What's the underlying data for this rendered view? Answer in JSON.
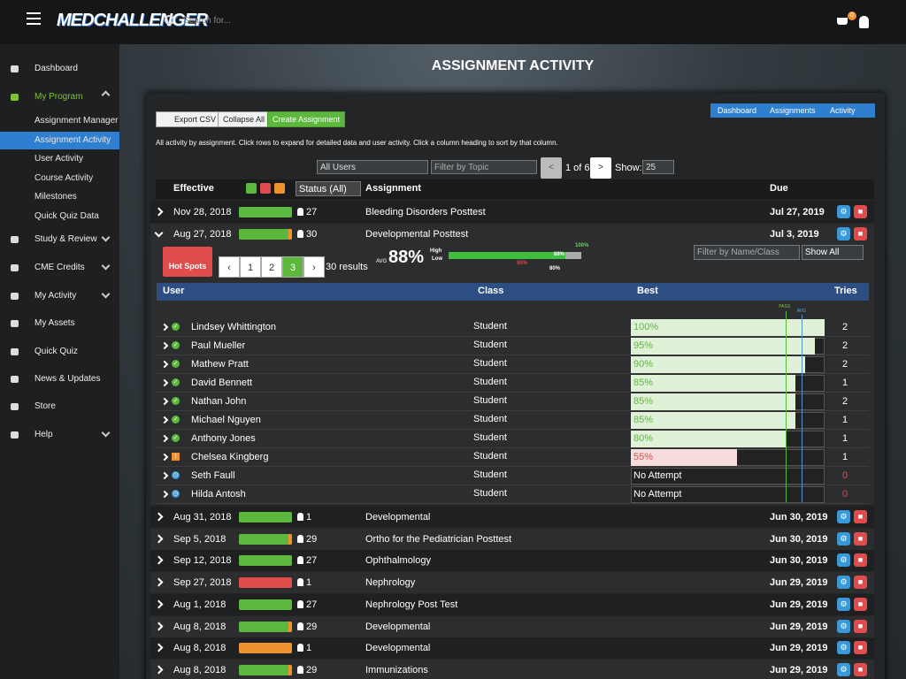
{
  "header": {
    "logo": "MEDCHALLENGER",
    "search_placeholder": "Search for...",
    "cart_count": "0"
  },
  "sidebar": [
    {
      "label": "Dashboard",
      "y": 0
    },
    {
      "label": "My Program",
      "active": true,
      "children": [
        "Assignment Manager",
        "Assignment Activity",
        "User Activity",
        "Course Activity",
        "Milestones",
        "Quick Quiz Data"
      ],
      "selected_child": 1
    },
    {
      "label": "Study & Review",
      "expandable": true
    },
    {
      "label": "CME Credits",
      "expandable": true
    },
    {
      "label": "My Activity",
      "expandable": true
    },
    {
      "label": "My Assets"
    },
    {
      "label": "Quick Quiz"
    },
    {
      "label": "News & Updates"
    },
    {
      "label": "Store"
    },
    {
      "label": "Help",
      "expandable": true
    }
  ],
  "page_title": "ASSIGNMENT ACTIVITY",
  "toolbar": {
    "export": "Export CSV",
    "collapse": "Collapse All",
    "create": "Create Assignment"
  },
  "breadcrumb": [
    "Dashboard",
    "Assignments",
    "Activity"
  ],
  "description": "All activity by assignment. Click rows to expand for detailed data and user activity. Click a column heading to sort by that column.",
  "filters": {
    "users": "All Users",
    "topic_placeholder": "Filter by Topic",
    "prev": "<",
    "page": "1 of 6",
    "next": ">",
    "show_label": "Show:",
    "show_value": "25"
  },
  "columns": {
    "effective": "Effective",
    "status": "Status (All)",
    "assignment": "Assignment",
    "due": "Due"
  },
  "assignments": [
    {
      "effective": "Nov 28, 2018",
      "users": "27",
      "name": "Bleeding Disorders Posttest",
      "due": "Jul 27, 2019",
      "color": "#5cb83c"
    },
    {
      "effective": "Aug 27, 2018",
      "users": "30",
      "name": "Developmental Posttest",
      "due": "Jul 3, 2019",
      "color": "#5cb83c",
      "tip_color": "#f0922e"
    },
    {
      "effective": "Aug 31, 2018",
      "users": "1",
      "name": "Developmental",
      "due": "Jun 30, 2019",
      "color": "#5cb83c"
    },
    {
      "effective": "Sep 5, 2018",
      "users": "29",
      "name": "Ortho for the Pediatrician Posttest",
      "due": "Jun 30, 2019",
      "color": "#5cb83c",
      "tip_color": "#f0922e"
    },
    {
      "effective": "Sep 12, 2018",
      "users": "27",
      "name": "Ophthalmology",
      "due": "Jun 30, 2019",
      "color": "#5cb83c"
    },
    {
      "effective": "Sep 27, 2018",
      "users": "1",
      "name": "Nephrology",
      "due": "Jun 29, 2019",
      "color": "#e04c4c"
    },
    {
      "effective": "Aug 1, 2018",
      "users": "27",
      "name": "Nephrology Post Test",
      "due": "Jun 29, 2019",
      "color": "#5cb83c"
    },
    {
      "effective": "Aug 8, 2018",
      "users": "29",
      "name": "Developmental",
      "due": "Jun 29, 2019",
      "color": "#5cb83c",
      "tip_color": "#f0922e"
    },
    {
      "effective": "Aug 8, 2018",
      "users": "1",
      "name": "Developmental",
      "due": "Jun 29, 2019",
      "color": "#f0922e"
    },
    {
      "effective": "Aug 8, 2018",
      "users": "29",
      "name": "Immunizations",
      "due": "Jun 29, 2019",
      "color": "#5cb83c",
      "tip_color": "#f0922e"
    }
  ],
  "detail": {
    "hot_spots": "Hot Spots",
    "pages": [
      "‹",
      "1",
      "2",
      "3",
      "›"
    ],
    "results": "30 results",
    "avg_label": "AVG",
    "avg": 88,
    "avg_text": "88%",
    "high": "High",
    "low": "Low",
    "max_label": "100%",
    "avg_marker": "88%",
    "low_marker": "55%",
    "pass_marker": "80%",
    "name_filter": "Filter by Name/Class",
    "show": "Show All",
    "columns": {
      "user": "User",
      "class": "Class",
      "best": "Best",
      "tries": "Tries"
    },
    "pass_label": "PASS",
    "avg_line_label": "AVG",
    "pass": 80,
    "users": [
      {
        "name": "Lindsey Whittington",
        "class": "Student",
        "best": 100,
        "best_label": "100%",
        "tries": "2",
        "status": "done"
      },
      {
        "name": "Paul Mueller",
        "class": "Student",
        "best": 95,
        "best_label": "95%",
        "tries": "2",
        "status": "done"
      },
      {
        "name": "Mathew Pratt",
        "class": "Student",
        "best": 90,
        "best_label": "90%",
        "tries": "2",
        "status": "done"
      },
      {
        "name": "David Bennett",
        "class": "Student",
        "best": 85,
        "best_label": "85%",
        "tries": "1",
        "status": "done"
      },
      {
        "name": "Nathan John",
        "class": "Student",
        "best": 85,
        "best_label": "85%",
        "tries": "2",
        "status": "done"
      },
      {
        "name": "Michael Nguyen",
        "class": "Student",
        "best": 85,
        "best_label": "85%",
        "tries": "1",
        "status": "done"
      },
      {
        "name": "Anthony Jones",
        "class": "Student",
        "best": 80,
        "best_label": "80%",
        "tries": "1",
        "status": "done"
      },
      {
        "name": "Chelsea Kingberg",
        "class": "Student",
        "best": 55,
        "best_label": "55%",
        "tries": "1",
        "status": "fail"
      },
      {
        "name": "Seth Faull",
        "class": "Student",
        "best": null,
        "best_label": "No Attempt",
        "tries": "0",
        "status": "pending"
      },
      {
        "name": "Hilda Antosh",
        "class": "Student",
        "best": null,
        "best_label": "No Attempt",
        "tries": "0",
        "status": "pending"
      }
    ]
  }
}
